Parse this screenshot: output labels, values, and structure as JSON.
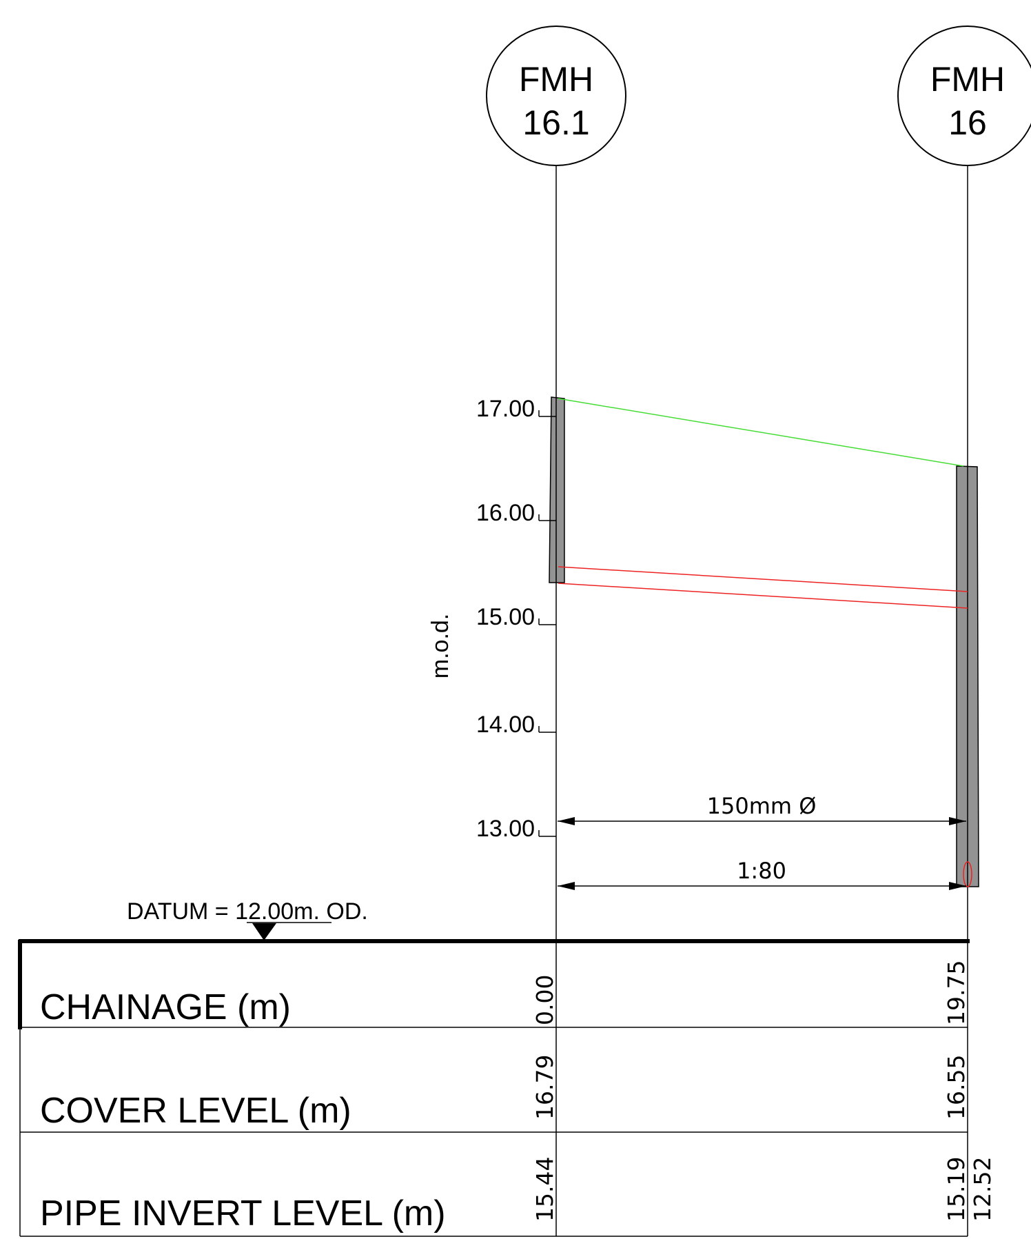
{
  "manholes": [
    {
      "label_line1": "FMH",
      "label_line2": "16.1"
    },
    {
      "label_line1": "FMH",
      "label_line2": "16"
    }
  ],
  "axis": {
    "unit_label": "m.o.d.",
    "ticks": [
      "17.00",
      "16.00",
      "15.00",
      "14.00",
      "13.00"
    ]
  },
  "pipe": {
    "diameter_label": "150mm Ø",
    "gradient_label": "1:80"
  },
  "datum": {
    "label": "DATUM = 12.00m. OD."
  },
  "table": {
    "rows": [
      {
        "label": "CHAINAGE (m)",
        "left_value": "0.00",
        "right_value": "19.75"
      },
      {
        "label": "COVER LEVEL (m)",
        "left_value": "16.79",
        "right_value": "16.55"
      },
      {
        "label": "PIPE INVERT LEVEL (m)",
        "left_value": "15.44",
        "right_value": "15.19",
        "right_value_extra": "12.52"
      }
    ]
  },
  "colors": {
    "ground_line": "#44dd33",
    "pipe_line": "#ee2222",
    "manhole_fill": "#939393",
    "ink": "#000000"
  }
}
